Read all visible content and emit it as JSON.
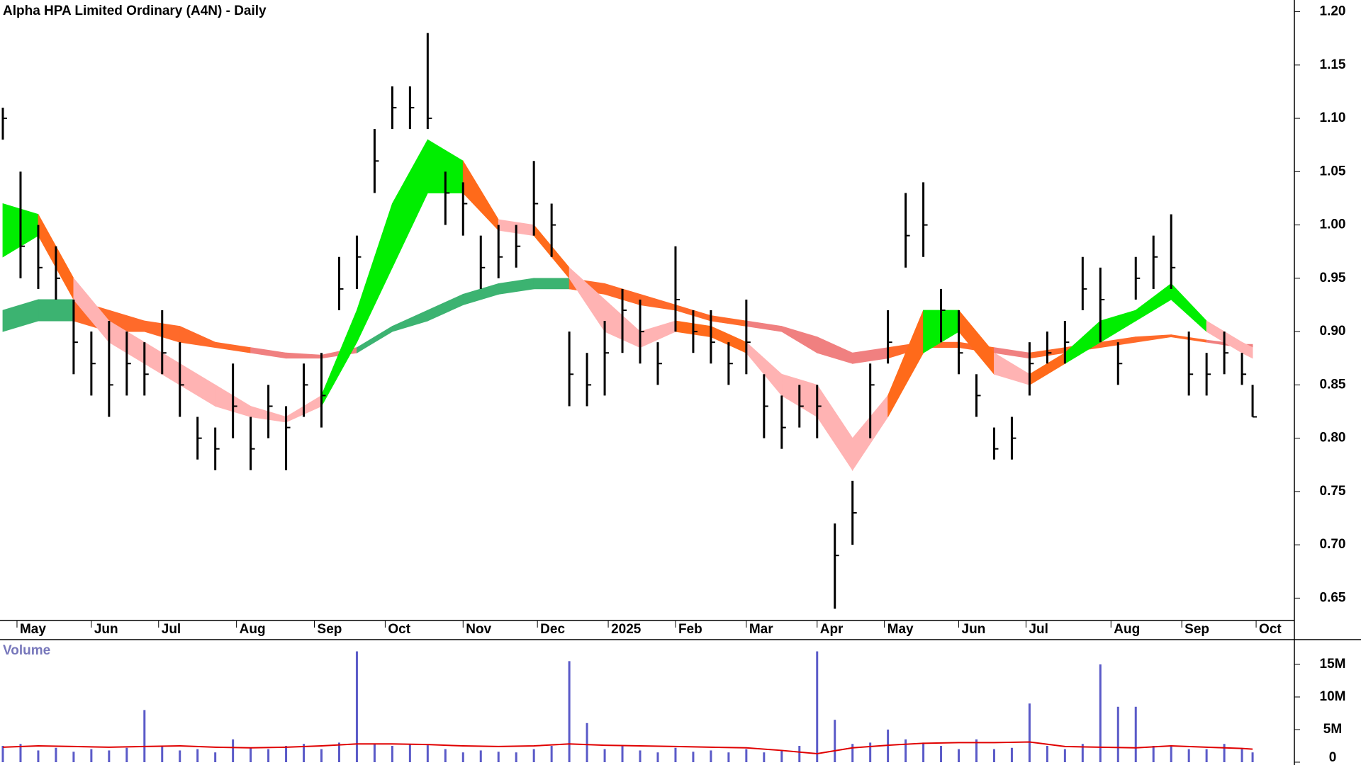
{
  "chart_data": [
    {
      "type": "hlc",
      "title": "Alpha HPA Limited Ordinary (A4N) - Daily",
      "x": [
        0,
        5,
        10,
        15,
        20,
        25,
        30,
        35,
        40,
        45,
        50,
        55,
        60,
        65,
        70,
        75,
        80,
        85,
        90,
        95,
        100,
        105,
        110,
        115,
        120,
        125,
        130,
        135,
        140,
        145,
        150,
        155,
        160,
        165,
        170,
        175,
        180,
        185,
        190,
        195,
        200,
        205,
        210,
        215,
        220,
        225,
        230,
        235,
        240,
        245,
        250,
        255,
        260,
        265,
        270,
        275,
        280,
        285,
        290,
        295,
        300,
        305,
        310,
        315,
        320,
        325,
        330,
        335,
        340,
        345,
        350,
        353
      ],
      "high": [
        1.11,
        1.05,
        1.0,
        0.98,
        0.93,
        0.9,
        0.91,
        0.9,
        0.89,
        0.92,
        0.89,
        0.82,
        0.81,
        0.87,
        0.82,
        0.85,
        0.83,
        0.87,
        0.88,
        0.97,
        0.99,
        1.09,
        1.13,
        1.13,
        1.18,
        1.05,
        1.04,
        0.99,
        1.0,
        1.0,
        1.06,
        1.02,
        0.9,
        0.88,
        0.91,
        0.94,
        0.93,
        0.89,
        0.98,
        0.92,
        0.92,
        0.89,
        0.93,
        0.86,
        0.84,
        0.85,
        0.85,
        0.72,
        0.76,
        0.87,
        0.92,
        1.03,
        1.04,
        0.94,
        0.92,
        0.86,
        0.81,
        0.82,
        0.89,
        0.9,
        0.91,
        0.97,
        0.96,
        0.89,
        0.97,
        0.99,
        1.01,
        0.9,
        0.88,
        0.9,
        0.88,
        0.85
      ],
      "low": [
        1.08,
        0.95,
        0.94,
        0.93,
        0.86,
        0.84,
        0.82,
        0.84,
        0.84,
        0.86,
        0.82,
        0.78,
        0.77,
        0.8,
        0.77,
        0.8,
        0.77,
        0.82,
        0.81,
        0.92,
        0.94,
        1.03,
        1.09,
        1.09,
        1.09,
        1.0,
        0.99,
        0.94,
        0.95,
        0.96,
        0.99,
        0.97,
        0.83,
        0.83,
        0.84,
        0.88,
        0.87,
        0.85,
        0.9,
        0.88,
        0.87,
        0.85,
        0.86,
        0.8,
        0.79,
        0.81,
        0.8,
        0.64,
        0.7,
        0.8,
        0.87,
        0.96,
        0.97,
        0.89,
        0.86,
        0.82,
        0.78,
        0.78,
        0.84,
        0.87,
        0.87,
        0.92,
        0.89,
        0.85,
        0.93,
        0.94,
        0.94,
        0.84,
        0.84,
        0.86,
        0.85,
        0.82
      ],
      "close": [
        1.1,
        0.98,
        0.96,
        0.95,
        0.89,
        0.87,
        0.85,
        0.87,
        0.86,
        0.88,
        0.85,
        0.8,
        0.79,
        0.83,
        0.79,
        0.83,
        0.81,
        0.85,
        0.84,
        0.94,
        0.97,
        1.06,
        1.11,
        1.11,
        1.1,
        1.03,
        1.02,
        0.96,
        0.97,
        0.98,
        1.02,
        1.0,
        0.86,
        0.85,
        0.88,
        0.92,
        0.9,
        0.87,
        0.93,
        0.9,
        0.89,
        0.87,
        0.89,
        0.83,
        0.81,
        0.83,
        0.83,
        0.69,
        0.73,
        0.85,
        0.89,
        0.99,
        1.0,
        0.92,
        0.88,
        0.84,
        0.79,
        0.8,
        0.87,
        0.88,
        0.89,
        0.94,
        0.93,
        0.87,
        0.95,
        0.97,
        0.96,
        0.86,
        0.86,
        0.88,
        0.86,
        0.82
      ],
      "color": "#000000",
      "band_x": [
        0,
        10,
        20,
        30,
        40,
        50,
        60,
        70,
        80,
        90,
        100,
        110,
        120,
        130,
        140,
        150,
        160,
        170,
        180,
        190,
        200,
        210,
        220,
        230,
        240,
        250,
        260,
        270,
        280,
        290,
        300,
        310,
        320,
        330,
        340,
        350,
        353
      ],
      "fast_band": {
        "upper": [
          1.02,
          1.01,
          0.95,
          0.91,
          0.89,
          0.87,
          0.85,
          0.83,
          0.82,
          0.84,
          0.92,
          1.02,
          1.08,
          1.06,
          1.005,
          1.0,
          0.96,
          0.93,
          0.9,
          0.91,
          0.905,
          0.89,
          0.86,
          0.85,
          0.8,
          0.84,
          0.92,
          0.92,
          0.88,
          0.86,
          0.88,
          0.91,
          0.92,
          0.945,
          0.91,
          0.89,
          0.885
        ],
        "lower": [
          0.97,
          0.99,
          0.93,
          0.89,
          0.87,
          0.85,
          0.83,
          0.82,
          0.815,
          0.83,
          0.89,
          0.96,
          1.03,
          1.03,
          0.995,
          0.99,
          0.95,
          0.9,
          0.885,
          0.9,
          0.895,
          0.88,
          0.84,
          0.82,
          0.77,
          0.82,
          0.88,
          0.9,
          0.86,
          0.85,
          0.87,
          0.89,
          0.91,
          0.93,
          0.9,
          0.88,
          0.875
        ],
        "segment_colors": [
          "#00ee00",
          "#ff6a1a",
          "#ffb3b3",
          "#ffb3b3",
          "#ffb3b3",
          "#ffb3b3",
          "#ffb3b3",
          "#ffb3b3",
          "#ffb3b3",
          "#00ee00",
          "#00ee00",
          "#00ee00",
          "#00ee00",
          "#ff6a1a",
          "#ffb3b3",
          "#ff6a1a",
          "#ffb3b3",
          "#ffb3b3",
          "#ffb3b3",
          "#ff6a1a",
          "#ff6a1a",
          "#ffb3b3",
          "#ffb3b3",
          "#ffb3b3",
          "#ffb3b3",
          "#ff6a1a",
          "#00ee00",
          "#ff6a1a",
          "#ffb3b3",
          "#ff6a1a",
          "#00ee00",
          "#00ee00",
          "#00ee00",
          "#00ee00",
          "#ffb3b3",
          "#ffb3b3"
        ]
      },
      "slow_band": {
        "upper": [
          0.92,
          0.93,
          0.93,
          0.92,
          0.91,
          0.905,
          0.89,
          0.885,
          0.88,
          0.878,
          0.885,
          0.905,
          0.92,
          0.935,
          0.945,
          0.95,
          0.95,
          0.945,
          0.935,
          0.925,
          0.915,
          0.91,
          0.905,
          0.895,
          0.88,
          0.885,
          0.89,
          0.89,
          0.885,
          0.88,
          0.885,
          0.89,
          0.895,
          0.897,
          0.892,
          0.888,
          0.888
        ],
        "lower": [
          0.9,
          0.91,
          0.91,
          0.9,
          0.9,
          0.89,
          0.885,
          0.88,
          0.875,
          0.875,
          0.88,
          0.9,
          0.91,
          0.925,
          0.935,
          0.94,
          0.94,
          0.935,
          0.925,
          0.92,
          0.91,
          0.905,
          0.9,
          0.88,
          0.87,
          0.875,
          0.885,
          0.885,
          0.88,
          0.875,
          0.88,
          0.885,
          0.89,
          0.895,
          0.89,
          0.885,
          0.885
        ],
        "segment_colors": [
          "#3cb371",
          "#3cb371",
          "#ff6a2a",
          "#ff6a2a",
          "#ff6a2a",
          "#ff6a2a",
          "#ff6a2a",
          "#f08080",
          "#f08080",
          "#f08080",
          "#3cb371",
          "#3cb371",
          "#3cb371",
          "#3cb371",
          "#3cb371",
          "#3cb371",
          "#ff6a2a",
          "#ff6a2a",
          "#ff6a2a",
          "#ff6a2a",
          "#ff6a2a",
          "#f08080",
          "#f08080",
          "#f08080",
          "#f08080",
          "#ff6a2a",
          "#ff6a2a",
          "#ff6a2a",
          "#f08080",
          "#ff6a2a",
          "#ff6a2a",
          "#ff6a2a",
          "#ff6a2a",
          "#ff6a2a",
          "#f08080",
          "#f08080"
        ]
      },
      "xlim": [
        0,
        365
      ],
      "xticks": [
        {
          "value": 4,
          "label": "May"
        },
        {
          "value": 25,
          "label": "Jun"
        },
        {
          "value": 44,
          "label": "Jul"
        },
        {
          "value": 66,
          "label": "Aug"
        },
        {
          "value": 88,
          "label": "Sep"
        },
        {
          "value": 108,
          "label": "Oct"
        },
        {
          "value": 130,
          "label": "Nov"
        },
        {
          "value": 151,
          "label": "Dec"
        },
        {
          "value": 171,
          "label": "2025"
        },
        {
          "value": 190,
          "label": "Feb"
        },
        {
          "value": 210,
          "label": "Mar"
        },
        {
          "value": 230,
          "label": "Apr"
        },
        {
          "value": 249,
          "label": "May"
        },
        {
          "value": 270,
          "label": "Jun"
        },
        {
          "value": 289,
          "label": "Jul"
        },
        {
          "value": 313,
          "label": "Aug"
        },
        {
          "value": 333,
          "label": "Sep"
        },
        {
          "value": 354,
          "label": "Oct"
        }
      ],
      "ylim": [
        0.629,
        1.211
      ],
      "yticks": [
        0.65,
        {
          "value": 0.7,
          "label": "0.70"
        },
        0.75,
        {
          "value": 0.8,
          "label": "0.80"
        },
        0.85,
        {
          "value": 0.9,
          "label": "0.90"
        },
        0.95,
        {
          "value": 1.0,
          "label": "1.00"
        },
        1.05,
        {
          "value": 1.1,
          "label": "1.10"
        },
        1.15,
        {
          "value": 1.2,
          "label": "1.20"
        }
      ]
    },
    {
      "type": "volume",
      "title": "Volume",
      "x": [
        0,
        5,
        10,
        15,
        20,
        25,
        30,
        35,
        40,
        45,
        50,
        55,
        60,
        65,
        70,
        75,
        80,
        85,
        90,
        95,
        100,
        105,
        110,
        115,
        120,
        125,
        130,
        135,
        140,
        145,
        150,
        155,
        160,
        165,
        170,
        175,
        180,
        185,
        190,
        195,
        200,
        205,
        210,
        215,
        220,
        225,
        230,
        235,
        240,
        245,
        250,
        255,
        260,
        265,
        270,
        275,
        280,
        285,
        290,
        295,
        300,
        305,
        310,
        315,
        320,
        325,
        330,
        335,
        340,
        345,
        350,
        353
      ],
      "values": [
        2.5,
        2.8,
        1.8,
        2.2,
        1.6,
        2.0,
        1.8,
        2.2,
        8.0,
        2.5,
        1.8,
        2.0,
        1.5,
        3.5,
        2.2,
        2.0,
        2.5,
        2.8,
        2.0,
        3.0,
        17.0,
        2.8,
        2.5,
        2.8,
        2.6,
        2.0,
        1.5,
        1.8,
        1.6,
        1.5,
        2.0,
        2.5,
        15.5,
        6.0,
        2.0,
        2.5,
        1.8,
        1.5,
        2.2,
        1.6,
        1.8,
        1.5,
        2.0,
        1.5,
        1.8,
        2.5,
        17.0,
        6.5,
        2.8,
        3.0,
        5.0,
        3.5,
        3.0,
        2.5,
        2.0,
        3.5,
        2.0,
        2.2,
        9.0,
        2.5,
        2.0,
        2.8,
        15.0,
        8.5,
        8.5,
        2.5,
        2.5,
        2.0,
        2.0,
        2.8,
        2.0,
        1.5
      ],
      "color": "#5a5ac8",
      "avg_x": [
        0,
        10,
        20,
        30,
        40,
        50,
        60,
        70,
        80,
        90,
        100,
        110,
        120,
        130,
        140,
        150,
        160,
        170,
        180,
        190,
        200,
        210,
        220,
        230,
        240,
        250,
        260,
        270,
        280,
        290,
        300,
        310,
        320,
        330,
        340,
        350,
        353
      ],
      "avg_values": [
        2.3,
        2.5,
        2.4,
        2.3,
        2.4,
        2.5,
        2.3,
        2.2,
        2.3,
        2.5,
        2.8,
        2.8,
        2.7,
        2.5,
        2.4,
        2.5,
        2.8,
        2.6,
        2.5,
        2.4,
        2.3,
        2.2,
        1.8,
        1.3,
        2.2,
        2.6,
        2.9,
        3.0,
        3.0,
        3.1,
        2.4,
        2.3,
        2.2,
        2.5,
        2.3,
        2.1,
        2.0
      ],
      "avg_color": "#e00000",
      "xlim": [
        0,
        365
      ],
      "ylim": [
        0,
        18.8
      ],
      "yticks": [
        0,
        {
          "value": 5,
          "label": "5M"
        },
        {
          "value": 10,
          "label": "10M"
        },
        {
          "value": 15,
          "label": "15M"
        }
      ]
    }
  ]
}
